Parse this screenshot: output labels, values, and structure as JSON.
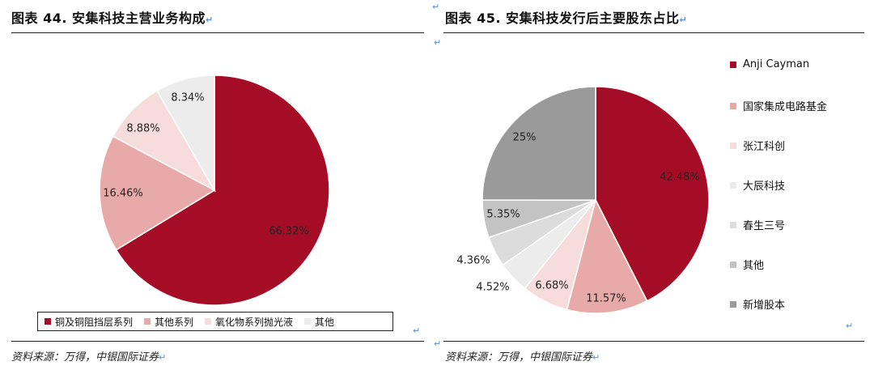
{
  "left": {
    "title": "图表 44. 安集科技主营业务构成",
    "source": "资料来源：万得，中银国际证券"
  },
  "right": {
    "title": "图表 45. 安集科技发行后主要股东占比",
    "source": "资料来源：万得，中银国际证券"
  },
  "return_mark": "↵",
  "chart_data": [
    {
      "type": "pie",
      "title": "图表 44. 安集科技主营业务构成",
      "legend_position": "bottom",
      "slices": [
        {
          "label": "铜及铜阻挡层系列",
          "value": 66.32,
          "display": "66.32%",
          "color": "#a50d26"
        },
        {
          "label": "其他系列",
          "value": 16.46,
          "display": "16.46%",
          "color": "#e8aaa8"
        },
        {
          "label": "氧化物系列抛光液",
          "value": 8.88,
          "display": "8.88%",
          "color": "#f7dcdc"
        },
        {
          "label": "其他",
          "value": 8.34,
          "display": "8.34%",
          "color": "#ececec"
        }
      ]
    },
    {
      "type": "pie",
      "title": "图表 45. 安集科技发行后主要股东占比",
      "legend_position": "right",
      "slices": [
        {
          "label": "Anji Cayman",
          "value": 42.48,
          "display": "42.48%",
          "color": "#a50d26"
        },
        {
          "label": "国家集成电路基金",
          "value": 11.57,
          "display": "11.57%",
          "color": "#e8aaa8"
        },
        {
          "label": "张江科创",
          "value": 6.68,
          "display": "6.68%",
          "color": "#f7dcdc"
        },
        {
          "label": "大辰科技",
          "value": 4.52,
          "display": "4.52%",
          "color": "#ececec"
        },
        {
          "label": "春生三号",
          "value": 4.36,
          "display": "4.36%",
          "color": "#dcdcdc"
        },
        {
          "label": "其他",
          "value": 5.35,
          "display": "5.35%",
          "color": "#c3c3c3"
        },
        {
          "label": "新增股本",
          "value": 25,
          "display": "25%",
          "color": "#9a9a9a"
        }
      ]
    }
  ]
}
